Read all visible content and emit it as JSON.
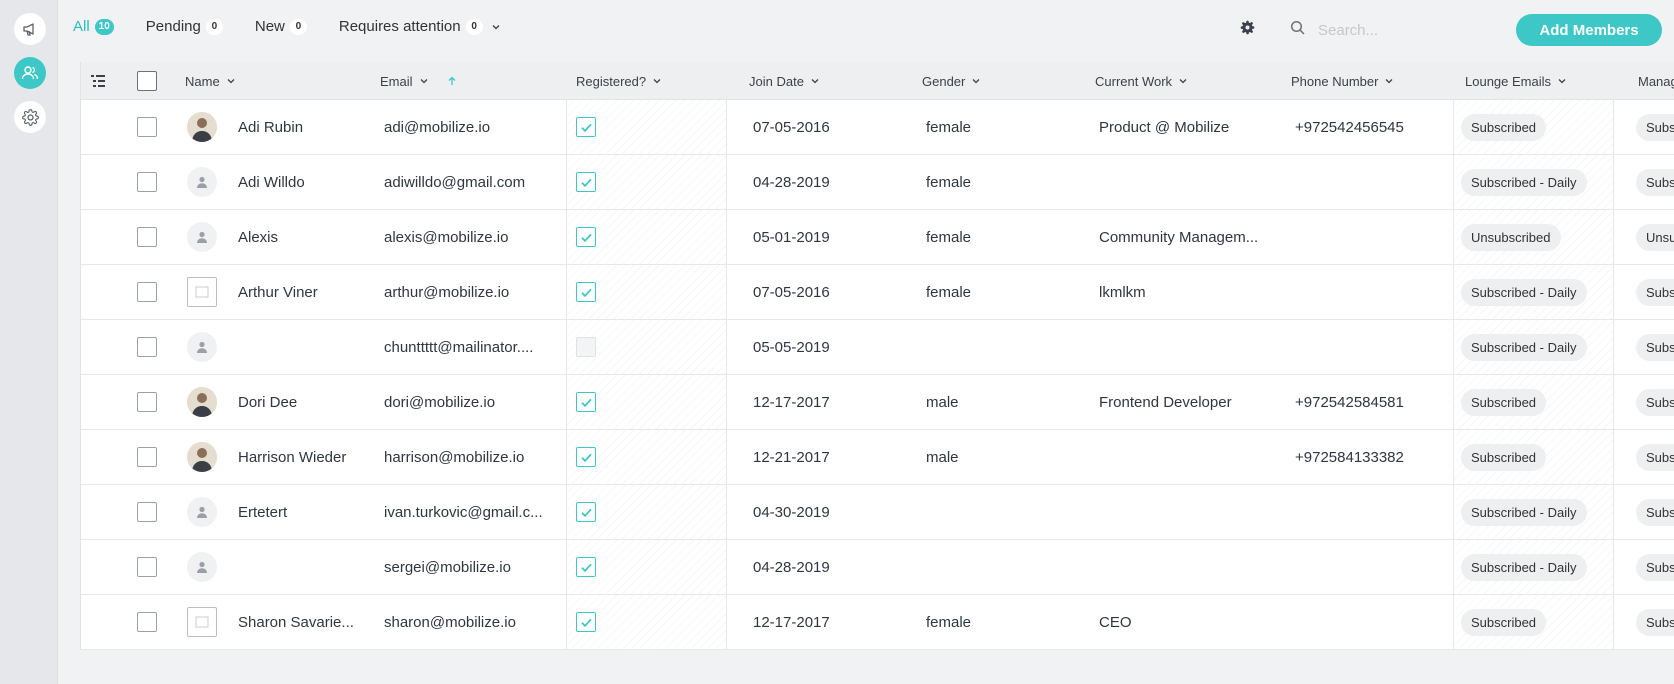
{
  "filters": [
    {
      "label": "All",
      "count": "10",
      "active": true
    },
    {
      "label": "Pending",
      "count": "0"
    },
    {
      "label": "New",
      "count": "0"
    },
    {
      "label": "Requires attention",
      "count": "0"
    }
  ],
  "search": {
    "placeholder": "Search..."
  },
  "add_members_label": "Add Members",
  "icons": {
    "rail": [
      "megaphone-icon",
      "members-icon",
      "settings-icon"
    ],
    "toolbar": [
      "gear-icon",
      "search-icon"
    ]
  },
  "colors": {
    "accent": "#3dc7c7"
  },
  "columns": [
    "Name",
    "Email",
    "Registered?",
    "Join Date",
    "Gender",
    "Current Work",
    "Phone Number",
    "Lounge Emails",
    "Manag"
  ],
  "sort": {
    "column": "Email",
    "direction": "ascending"
  },
  "rows": [
    {
      "name": "Adi Rubin",
      "email": "adi@mobilize.io",
      "registered": true,
      "join_date": "07-05-2016",
      "gender": "female",
      "work": "Product @ Mobilize",
      "phone": "+972542456545",
      "lounge": "Subscribed",
      "manage": "Subs",
      "avatar": "photo"
    },
    {
      "name": "Adi Willdo",
      "email": "adiwilldo@gmail.com",
      "registered": true,
      "join_date": "04-28-2019",
      "gender": "female",
      "work": "",
      "phone": "",
      "lounge": "Subscribed - Daily",
      "manage": "Subs",
      "avatar": "default"
    },
    {
      "name": "Alexis",
      "email": "alexis@mobilize.io",
      "registered": true,
      "join_date": "05-01-2019",
      "gender": "female",
      "work": "Community Managem...",
      "phone": "",
      "lounge": "Unsubscribed",
      "manage": "Unsu",
      "avatar": "default"
    },
    {
      "name": "Arthur Viner",
      "email": "arthur@mobilize.io",
      "registered": true,
      "join_date": "07-05-2016",
      "gender": "female",
      "work": "lkmlkm",
      "phone": "",
      "lounge": "Subscribed - Daily",
      "manage": "Subs",
      "avatar": "broken"
    },
    {
      "name": "",
      "email": "chunttttt@mailinator....",
      "registered": false,
      "join_date": "05-05-2019",
      "gender": "",
      "work": "",
      "phone": "",
      "lounge": "Subscribed - Daily",
      "manage": "Subs",
      "avatar": "default"
    },
    {
      "name": "Dori Dee",
      "email": "dori@mobilize.io",
      "registered": true,
      "join_date": "12-17-2017",
      "gender": "male",
      "work": "Frontend Developer",
      "phone": "+972542584581",
      "lounge": "Subscribed",
      "manage": "Subs",
      "avatar": "photo"
    },
    {
      "name": "Harrison Wieder",
      "email": "harrison@mobilize.io",
      "registered": true,
      "join_date": "12-21-2017",
      "gender": "male",
      "work": "",
      "phone": "+972584133382",
      "lounge": "Subscribed",
      "manage": "Subs",
      "avatar": "photo"
    },
    {
      "name": "Ertetert",
      "email": "ivan.turkovic@gmail.c...",
      "registered": true,
      "join_date": "04-30-2019",
      "gender": "",
      "work": "",
      "phone": "",
      "lounge": "Subscribed - Daily",
      "manage": "Subs",
      "avatar": "default"
    },
    {
      "name": "",
      "email": "sergei@mobilize.io",
      "registered": true,
      "join_date": "04-28-2019",
      "gender": "",
      "work": "",
      "phone": "",
      "lounge": "Subscribed - Daily",
      "manage": "Subs",
      "avatar": "default"
    },
    {
      "name": "Sharon Savarie...",
      "email": "sharon@mobilize.io",
      "registered": true,
      "join_date": "12-17-2017",
      "gender": "female",
      "work": "CEO",
      "phone": "",
      "lounge": "Subscribed",
      "manage": "Subs",
      "avatar": "broken"
    }
  ]
}
